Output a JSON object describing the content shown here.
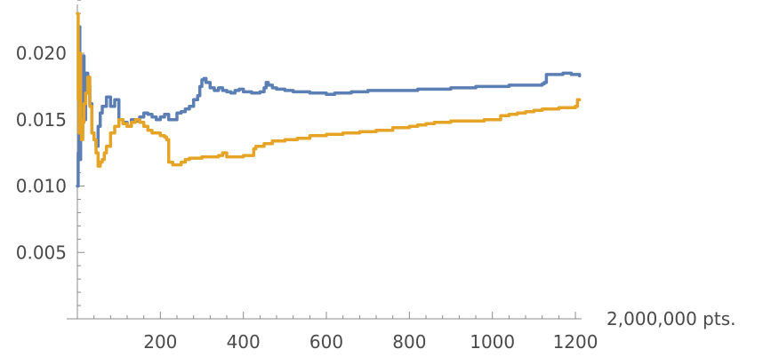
{
  "chart_data": {
    "type": "line",
    "title": "",
    "xlabel": "2,000,000 pts.",
    "ylabel": "",
    "xlim": [
      0,
      1215
    ],
    "ylim": [
      0,
      0.0245
    ],
    "x_ticks": [
      200,
      400,
      600,
      800,
      1000,
      1200
    ],
    "x_tick_labels": [
      "200",
      "400",
      "600",
      "800",
      "1000",
      "1200"
    ],
    "x_minor_step": 40,
    "y_ticks": [
      0.005,
      0.01,
      0.015,
      0.02
    ],
    "y_tick_labels": [
      "0.005",
      "0.010",
      "0.015",
      "0.020"
    ],
    "y_minor_step": 0.001,
    "grid": false,
    "legend": "none",
    "series": [
      {
        "color": "#5b7fb5",
        "x": [
          0,
          2,
          4,
          6,
          8,
          10,
          13,
          16,
          20,
          25,
          30,
          35,
          40,
          45,
          50,
          55,
          60,
          70,
          80,
          90,
          100,
          110,
          120,
          130,
          140,
          150,
          160,
          170,
          180,
          190,
          200,
          210,
          220,
          230,
          240,
          250,
          260,
          270,
          280,
          290,
          295,
          300,
          305,
          310,
          320,
          330,
          340,
          350,
          360,
          370,
          380,
          390,
          400,
          420,
          440,
          450,
          455,
          460,
          470,
          480,
          500,
          520,
          540,
          560,
          580,
          600,
          620,
          640,
          660,
          680,
          700,
          720,
          740,
          760,
          780,
          800,
          820,
          840,
          860,
          880,
          900,
          920,
          940,
          960,
          980,
          1000,
          1020,
          1040,
          1060,
          1080,
          1100,
          1120,
          1125,
          1130,
          1150,
          1170,
          1190,
          1210
        ],
        "values": [
          0.01,
          0.0125,
          0.022,
          0.012,
          0.018,
          0.014,
          0.0198,
          0.015,
          0.0185,
          0.0175,
          0.0162,
          0.014,
          0.0135,
          0.013,
          0.0145,
          0.0155,
          0.016,
          0.0167,
          0.016,
          0.0165,
          0.015,
          0.0148,
          0.0145,
          0.015,
          0.0149,
          0.0152,
          0.0155,
          0.0154,
          0.0152,
          0.015,
          0.0152,
          0.0154,
          0.015,
          0.015,
          0.0155,
          0.0156,
          0.0158,
          0.016,
          0.0165,
          0.0168,
          0.0175,
          0.018,
          0.0181,
          0.0178,
          0.0174,
          0.0172,
          0.0174,
          0.0172,
          0.0171,
          0.017,
          0.0172,
          0.0173,
          0.0171,
          0.017,
          0.0171,
          0.0174,
          0.0178,
          0.0176,
          0.0174,
          0.0173,
          0.0172,
          0.0171,
          0.0171,
          0.017,
          0.017,
          0.0169,
          0.017,
          0.017,
          0.0171,
          0.0171,
          0.0172,
          0.0172,
          0.0172,
          0.0172,
          0.0172,
          0.0172,
          0.0173,
          0.0173,
          0.0173,
          0.0173,
          0.0174,
          0.0174,
          0.0174,
          0.0175,
          0.0175,
          0.0175,
          0.0175,
          0.0176,
          0.0176,
          0.0176,
          0.0176,
          0.0177,
          0.0178,
          0.0184,
          0.0184,
          0.0185,
          0.0184,
          0.0183
        ]
      },
      {
        "color": "#e6a426",
        "x": [
          0,
          2,
          4,
          6,
          8,
          10,
          13,
          16,
          20,
          25,
          30,
          35,
          40,
          45,
          50,
          55,
          60,
          65,
          70,
          80,
          90,
          100,
          110,
          120,
          130,
          140,
          150,
          160,
          170,
          180,
          190,
          200,
          210,
          215,
          220,
          230,
          240,
          250,
          260,
          270,
          280,
          290,
          300,
          320,
          340,
          350,
          360,
          380,
          400,
          420,
          425,
          430,
          450,
          470,
          500,
          530,
          560,
          600,
          640,
          680,
          720,
          760,
          800,
          820,
          840,
          860,
          880,
          900,
          940,
          980,
          1000,
          1020,
          1040,
          1060,
          1080,
          1100,
          1120,
          1140,
          1160,
          1180,
          1195,
          1200,
          1205,
          1210
        ],
        "values": [
          0.023,
          0.0165,
          0.014,
          0.02,
          0.015,
          0.0135,
          0.0148,
          0.0162,
          0.017,
          0.0182,
          0.016,
          0.014,
          0.0135,
          0.0125,
          0.0115,
          0.0118,
          0.012,
          0.0125,
          0.013,
          0.014,
          0.0145,
          0.015,
          0.0147,
          0.0145,
          0.0148,
          0.015,
          0.0148,
          0.0145,
          0.0142,
          0.014,
          0.014,
          0.0138,
          0.0137,
          0.0135,
          0.0118,
          0.0116,
          0.0116,
          0.0118,
          0.012,
          0.0121,
          0.0121,
          0.0121,
          0.0122,
          0.0122,
          0.0123,
          0.0125,
          0.0122,
          0.0122,
          0.0123,
          0.0123,
          0.0128,
          0.013,
          0.0132,
          0.0134,
          0.0135,
          0.0136,
          0.0138,
          0.0139,
          0.014,
          0.0141,
          0.0142,
          0.0144,
          0.0145,
          0.0146,
          0.0147,
          0.0148,
          0.0148,
          0.0149,
          0.0149,
          0.015,
          0.015,
          0.0153,
          0.0154,
          0.0155,
          0.0156,
          0.0157,
          0.0158,
          0.0158,
          0.0159,
          0.0159,
          0.0159,
          0.016,
          0.0165,
          0.0165
        ]
      }
    ]
  }
}
